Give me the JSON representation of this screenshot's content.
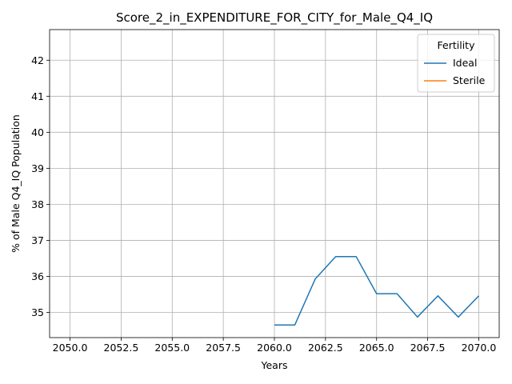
{
  "chart_data": {
    "type": "line",
    "title": "Score_2_in_EXPENDITURE_FOR_CITY_for_Male_Q4_IQ",
    "xlabel": "Years",
    "ylabel": "% of Male Q4_IQ Population",
    "xlim": [
      2049,
      2071
    ],
    "ylim": [
      34.3,
      42.85
    ],
    "xticks": [
      2050.0,
      2052.5,
      2055.0,
      2057.5,
      2060.0,
      2062.5,
      2065.0,
      2067.5,
      2070.0
    ],
    "xtick_labels": [
      "2050.0",
      "2052.5",
      "2055.0",
      "2057.5",
      "2060.0",
      "2062.5",
      "2065.0",
      "2067.5",
      "2070.0"
    ],
    "yticks": [
      35,
      36,
      37,
      38,
      39,
      40,
      41,
      42
    ],
    "ytick_labels": [
      "35",
      "36",
      "37",
      "38",
      "39",
      "40",
      "41",
      "42"
    ],
    "grid": true,
    "legend": {
      "title": "Fertility",
      "placement": "top-right"
    },
    "series": [
      {
        "name": "Ideal",
        "color": "#1f77b4",
        "x": [
          2060,
          2061,
          2062,
          2063,
          2064,
          2065,
          2066,
          2067,
          2068,
          2069,
          2070
        ],
        "y": [
          34.65,
          34.65,
          35.93,
          36.55,
          36.55,
          35.52,
          35.52,
          34.87,
          35.46,
          34.87,
          35.46
        ]
      },
      {
        "name": "Sterile",
        "color": "#ff7f0e",
        "x": [],
        "y": []
      }
    ]
  }
}
